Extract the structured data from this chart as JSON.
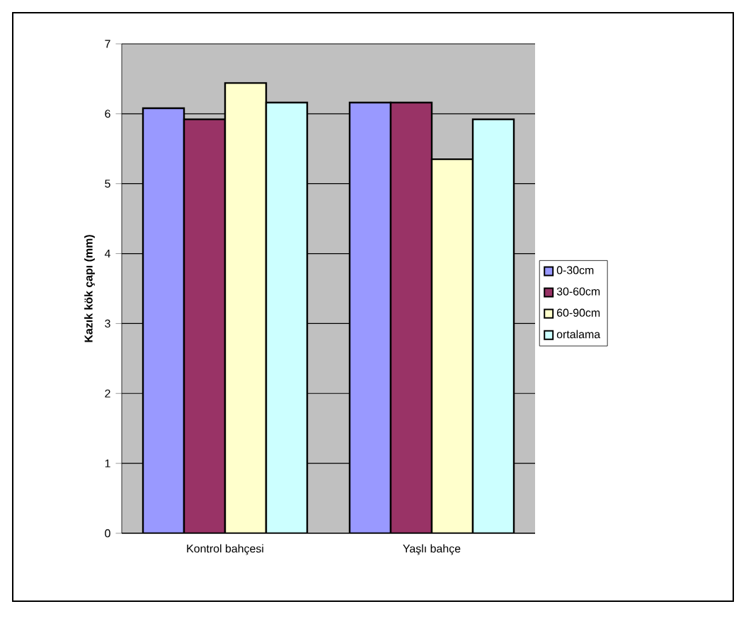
{
  "chart_data": {
    "type": "bar",
    "ylabel": "Kazık kök çapı (mm)",
    "categories": [
      "Kontrol bahçesi",
      "Yaşlı bahçe"
    ],
    "series": [
      {
        "name": "0-30cm",
        "color": "#9999ff",
        "values": [
          6.08,
          6.16
        ]
      },
      {
        "name": "30-60cm",
        "color": "#993366",
        "values": [
          5.92,
          6.16
        ]
      },
      {
        "name": "60-90cm",
        "color": "#ffffcc",
        "values": [
          6.44,
          5.35
        ]
      },
      {
        "name": "ortalama",
        "color": "#ccffff",
        "values": [
          6.16,
          5.92
        ]
      }
    ],
    "ylim": [
      0,
      7
    ],
    "yticks": [
      0,
      1,
      2,
      3,
      4,
      5,
      6,
      7
    ],
    "grid": "y",
    "legend": "right"
  }
}
